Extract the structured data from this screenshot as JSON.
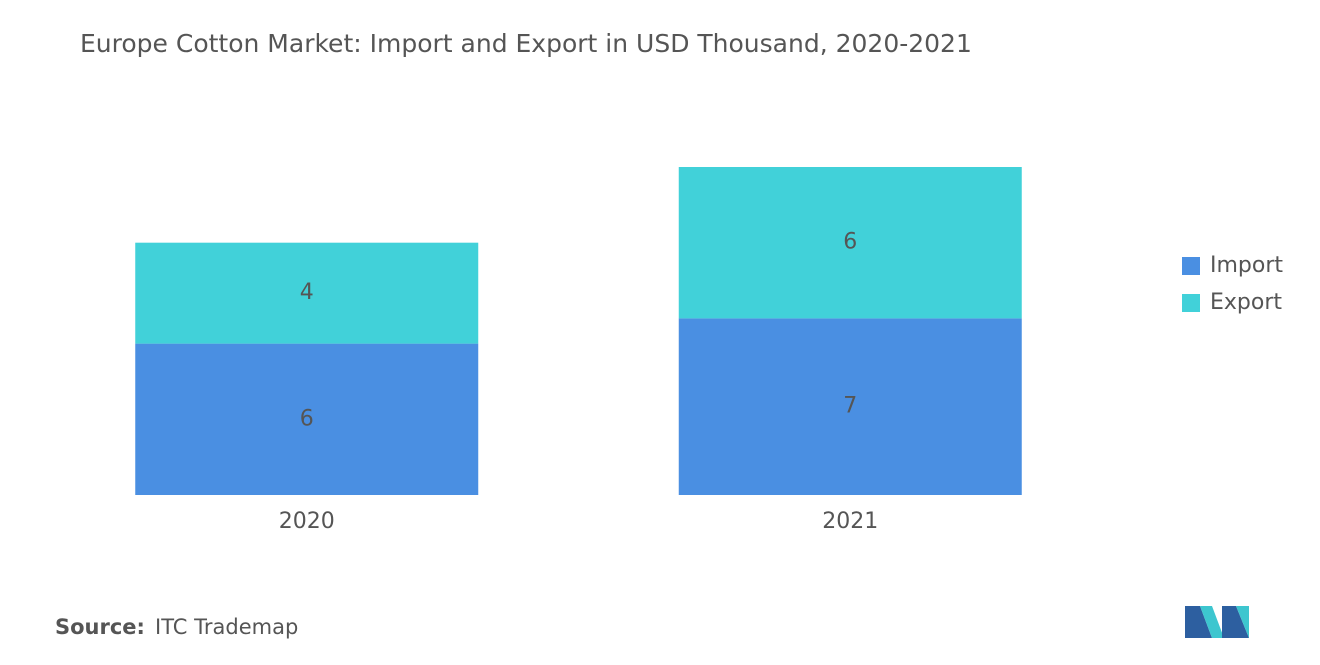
{
  "chart_data": {
    "type": "stacked-bar",
    "title": "Europe Cotton Market: Import and Export in USD Thousand, 2020-2021",
    "categories": [
      "2020",
      "2021"
    ],
    "series": [
      {
        "name": "Import",
        "color": "#4a8fe2",
        "values": [
          6,
          7
        ]
      },
      {
        "name": "Export",
        "color": "#41d1d9",
        "values": [
          4,
          6
        ]
      }
    ],
    "legend": "right",
    "source_label": "Source:",
    "source": "ITC Trademap"
  }
}
